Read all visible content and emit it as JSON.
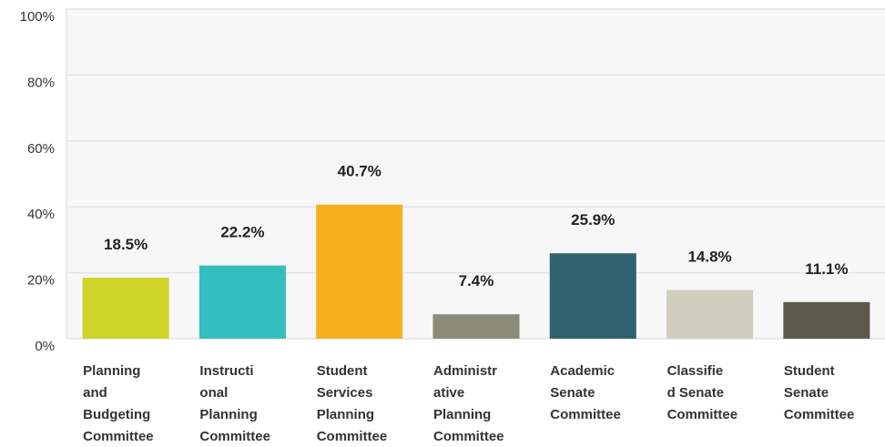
{
  "chart_data": {
    "type": "bar",
    "categories": [
      "Planning\nand\nBudgeting\nCommittee",
      "Instructi\nonal\nPlanning\nCommittee",
      "Student\nServices\nPlanning\nCommittee",
      "Administr\native\nPlanning\nCommittee",
      "Academic\nSenate\nCommittee",
      "Classifie\nd Senate\nCommittee",
      "Student\nSenate\nCommittee"
    ],
    "values": [
      18.5,
      22.2,
      40.7,
      7.4,
      25.9,
      14.8,
      11.1
    ],
    "value_labels": [
      "18.5%",
      "22.2%",
      "40.7%",
      "7.4%",
      "25.9%",
      "14.8%",
      "11.1%"
    ],
    "colors": [
      "#cfd52a",
      "#33bfbf",
      "#f7b01f",
      "#8a8b78",
      "#2f616f",
      "#d0cfbf",
      "#5c5a4a"
    ],
    "ylim": [
      0,
      100
    ],
    "yticks": [
      {
        "value": 0,
        "label": "0%"
      },
      {
        "value": 20,
        "label": "20%"
      },
      {
        "value": 40,
        "label": "40%"
      },
      {
        "value": 60,
        "label": "60%"
      },
      {
        "value": 80,
        "label": "80%"
      },
      {
        "value": 100,
        "label": "100%"
      }
    ],
    "grid": true
  }
}
